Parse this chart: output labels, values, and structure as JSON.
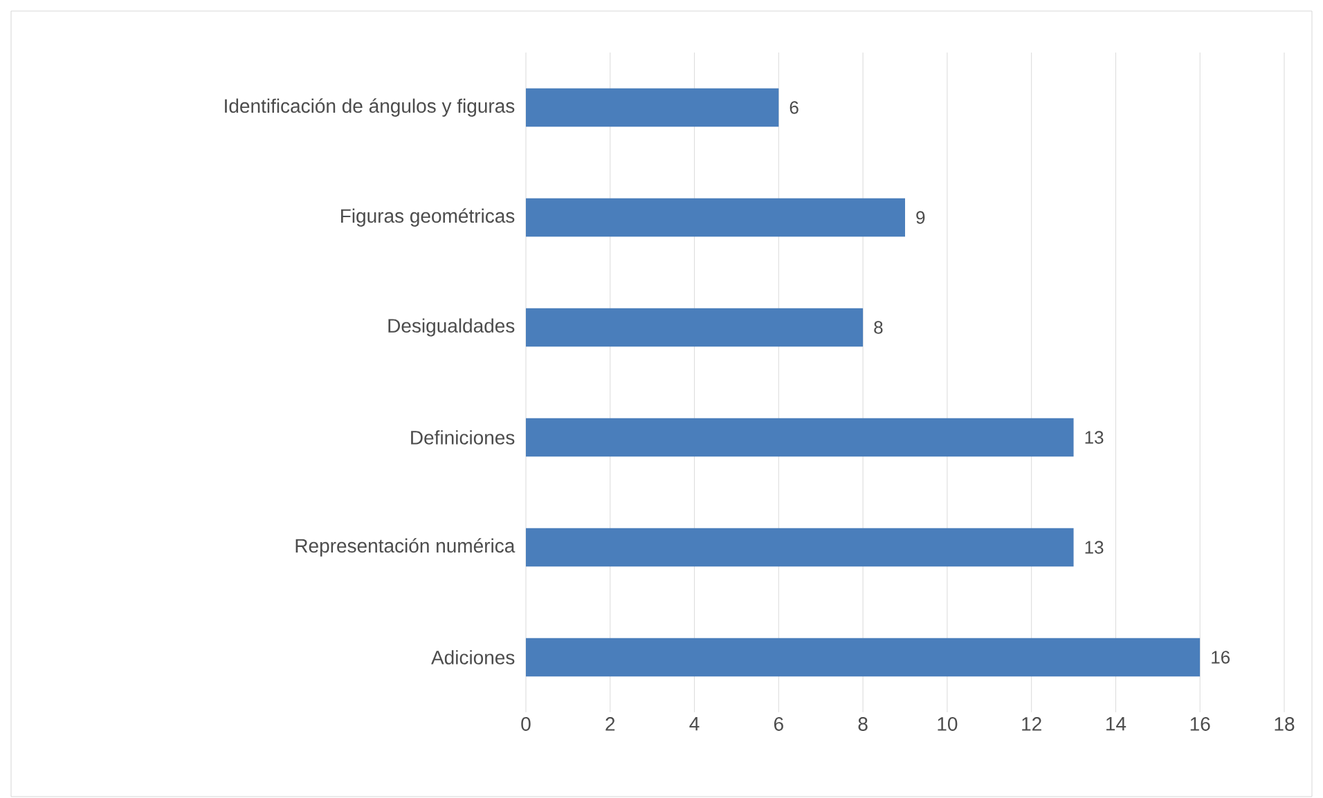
{
  "chart_data": {
    "type": "bar",
    "orientation": "horizontal",
    "categories": [
      "Identificación de ángulos y figuras",
      "Figuras geométricas",
      "Desigualdades",
      "Definiciones",
      "Representación numérica",
      "Adiciones"
    ],
    "values": [
      6,
      9,
      8,
      13,
      13,
      16
    ],
    "color": "#4a7ebb",
    "xlim": [
      0,
      18
    ],
    "xticks": [
      0,
      2,
      4,
      6,
      8,
      10,
      12,
      14,
      16,
      18
    ],
    "grid": "x",
    "data_labels": true
  }
}
